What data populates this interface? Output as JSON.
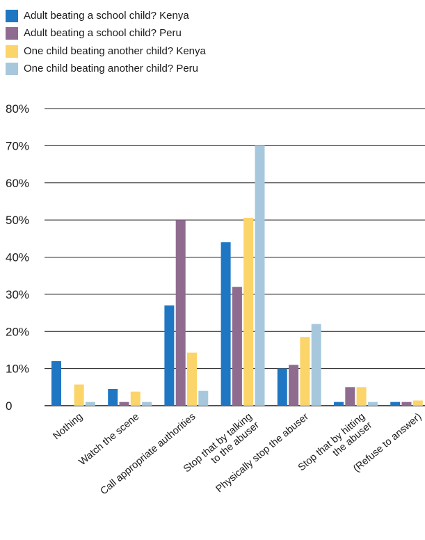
{
  "chart_data": {
    "type": "bar",
    "categories": [
      [
        "Nothing"
      ],
      [
        "Watch the scene"
      ],
      [
        "Call appropriate authorities"
      ],
      [
        "Stop that by talking",
        "to the abuser"
      ],
      [
        "Physically stop the abuser"
      ],
      [
        "Stop that by hitting",
        "the abuser"
      ],
      [
        "(Refuse to answer)"
      ]
    ],
    "series": [
      {
        "name": "Adult beating a school child? Kenya",
        "color": "#1f77c3",
        "values": [
          12,
          4.5,
          27,
          44,
          10,
          1,
          1
        ]
      },
      {
        "name": "Adult beating a school child? Peru",
        "color": "#8f6c8f",
        "values": [
          0,
          1,
          50,
          32,
          11,
          5,
          1
        ]
      },
      {
        "name": "One child beating another child? Kenya",
        "color": "#fbd46a",
        "values": [
          5.7,
          3.8,
          14.3,
          50.6,
          18.5,
          5,
          1.4
        ]
      },
      {
        "name": "One child beating another child? Peru",
        "color": "#a7c8dc",
        "values": [
          1,
          1,
          4,
          70,
          22,
          1,
          0
        ]
      }
    ],
    "yticks": [
      "0",
      "10%",
      "20%",
      "30%",
      "40%",
      "50%",
      "60%",
      "70%",
      "80%"
    ],
    "ylim": [
      0,
      80
    ],
    "grid": true,
    "legend_position": "top-left"
  }
}
